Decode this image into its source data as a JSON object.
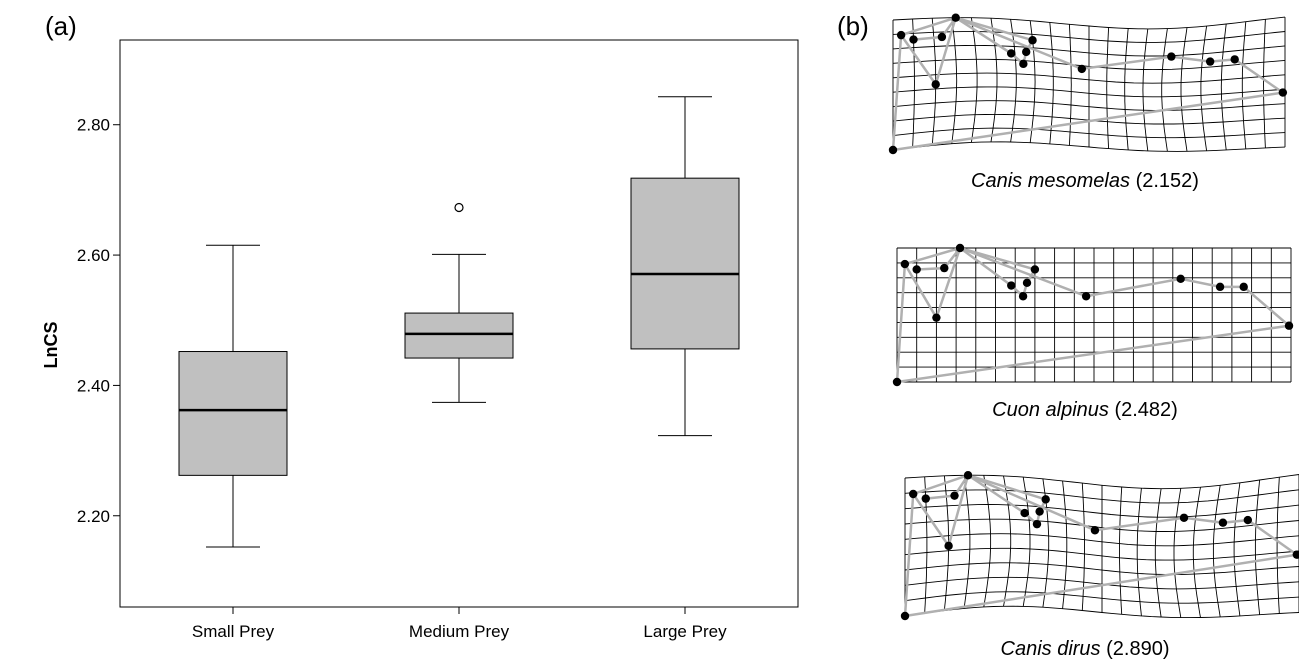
{
  "panel_a_label": "(a)",
  "panel_b_label": "(b)",
  "chart_data": {
    "type": "box",
    "ylabel": "LnCS",
    "xlabel": "",
    "ylim": [
      2.06,
      2.93
    ],
    "yticks": [
      2.2,
      2.4,
      2.6,
      2.8
    ],
    "ytick_labels": [
      "2.20",
      "2.40",
      "2.60",
      "2.80"
    ],
    "categories": [
      "Small Prey",
      "Medium Prey",
      "Large Prey"
    ],
    "boxes": [
      {
        "category": "Small Prey",
        "whisker_low": 2.152,
        "q1": 2.262,
        "median": 2.362,
        "q3": 2.452,
        "whisker_high": 2.615,
        "outliers": []
      },
      {
        "category": "Medium Prey",
        "whisker_low": 2.374,
        "q1": 2.442,
        "median": 2.479,
        "q3": 2.511,
        "whisker_high": 2.601,
        "outliers": [
          2.673
        ]
      },
      {
        "category": "Large Prey",
        "whisker_low": 2.323,
        "q1": 2.456,
        "median": 2.571,
        "q3": 2.718,
        "whisker_high": 2.843,
        "outliers": []
      }
    ],
    "box_color": "#c0c0c0",
    "grid": false
  },
  "deformation_grids": [
    {
      "species": "Canis mesomelas",
      "value": "(2.152)"
    },
    {
      "species": "Cuon alpinus",
      "value": "(2.482)"
    },
    {
      "species": "Canis dirus",
      "value": "(2.890)"
    }
  ]
}
